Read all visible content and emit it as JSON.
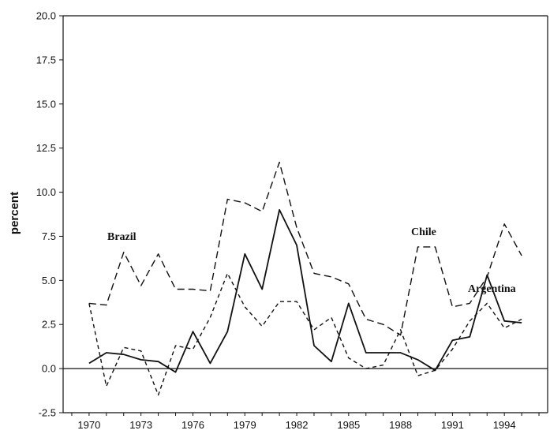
{
  "chart_data": {
    "type": "line",
    "title": "",
    "xlabel": "",
    "ylabel": "percent",
    "xlim": [
      1968.5,
      1996.5
    ],
    "ylim": [
      -2.5,
      20.0
    ],
    "y_ticks": [
      "-2.5",
      "0.0",
      "2.5",
      "5.0",
      "7.5",
      "10.0",
      "12.5",
      "15.0",
      "17.5",
      "20.0"
    ],
    "x_ticks": [
      "1970",
      "1973",
      "1976",
      "1979",
      "1982",
      "1985",
      "1988",
      "1991",
      "1994"
    ],
    "grid": false,
    "legend": "inline labels",
    "zero_line": true,
    "x": [
      1970,
      1971,
      1972,
      1973,
      1974,
      1975,
      1976,
      1977,
      1978,
      1979,
      1980,
      1981,
      1982,
      1983,
      1984,
      1985,
      1986,
      1987,
      1988,
      1989,
      1990,
      1991,
      1992,
      1993,
      1994,
      1995
    ],
    "series": [
      {
        "name": "Argentina",
        "style": "solid",
        "values": [
          0.3,
          0.9,
          0.8,
          0.5,
          0.4,
          -0.2,
          2.1,
          0.3,
          2.1,
          6.5,
          4.5,
          9.0,
          7.0,
          1.3,
          0.4,
          3.7,
          0.9,
          0.9,
          0.9,
          0.5,
          -0.1,
          1.6,
          1.8,
          5.3,
          2.7,
          2.6
        ]
      },
      {
        "name": "Brazil",
        "style": "short-dash",
        "values": [
          3.7,
          -1.0,
          1.2,
          1.0,
          -1.5,
          1.3,
          1.1,
          2.9,
          5.4,
          3.5,
          2.4,
          3.8,
          3.8,
          2.2,
          2.9,
          0.6,
          0.0,
          0.2,
          2.2,
          -0.4,
          -0.1,
          1.1,
          2.7,
          3.7,
          2.3,
          2.8
        ]
      },
      {
        "name": "Chile",
        "style": "long-dash",
        "values": [
          3.7,
          3.6,
          6.6,
          4.7,
          6.5,
          4.5,
          4.5,
          4.4,
          9.6,
          9.4,
          8.9,
          11.7,
          8.0,
          5.4,
          5.2,
          4.8,
          2.8,
          2.5,
          1.9,
          6.9,
          6.9,
          3.5,
          3.7,
          5.2,
          8.2,
          6.4
        ]
      }
    ],
    "labels": {
      "brazil": "Brazil",
      "chile": "Chile",
      "argentina": "Argentina"
    }
  }
}
